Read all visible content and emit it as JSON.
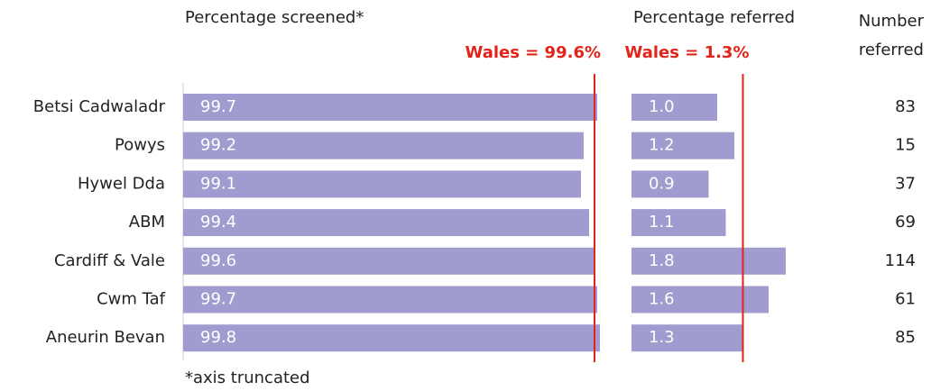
{
  "chart_data": [
    {
      "type": "hbar",
      "title": "Percentage screened*",
      "note": "*axis truncated",
      "categories": [
        "Betsi Cadwaladr",
        "Powys",
        "Hywel Dda",
        "ABM",
        "Cardiff & Vale",
        "Cwm Taf",
        "Aneurin Bevan"
      ],
      "values": [
        99.7,
        99.2,
        99.1,
        99.4,
        99.6,
        99.7,
        99.8
      ],
      "color": "#a09ccf",
      "xlim": [
        84.4,
        100
      ],
      "reference": {
        "value": 99.6,
        "label": "Wales = 99.6%",
        "color": "#e2231a"
      }
    },
    {
      "type": "hbar",
      "title": "Percentage referred",
      "values": [
        1.0,
        1.2,
        0.9,
        1.1,
        1.8,
        1.6,
        1.3
      ],
      "value_labels": [
        "1.0",
        "1.2",
        "0.9",
        "1.1",
        "1.8",
        "1.6",
        "1.3"
      ],
      "color": "#a09ccf",
      "xlim": [
        0,
        2
      ],
      "reference": {
        "value": 1.3,
        "label": "Wales = 1.3%",
        "color": "#e2231a"
      }
    },
    {
      "type": "column",
      "title": "Number referred",
      "values": [
        83,
        15,
        37,
        69,
        114,
        61,
        85
      ]
    }
  ]
}
